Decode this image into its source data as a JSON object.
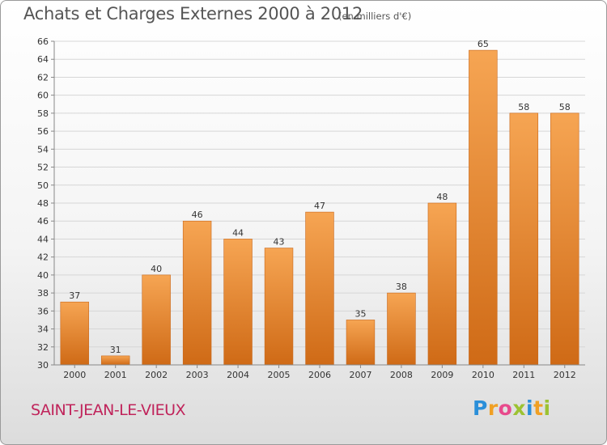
{
  "header": {
    "title": "Achats et Charges Externes 2000 à 2012",
    "subtitle": "(en milliers d'€)"
  },
  "footer": {
    "commune": "SAINT-JEAN-LE-VIEUX",
    "brand_letters": [
      {
        "ch": "P",
        "color": "#2b8fd9"
      },
      {
        "ch": "r",
        "color": "#f0a024"
      },
      {
        "ch": "o",
        "color": "#e84a8c"
      },
      {
        "ch": "x",
        "color": "#9cc232"
      },
      {
        "ch": "i",
        "color": "#2b8fd9"
      },
      {
        "ch": "t",
        "color": "#f0a024"
      },
      {
        "ch": "i",
        "color": "#9cc232"
      }
    ]
  },
  "colors": {
    "bar_light": "#f6a553",
    "bar_dark": "#cf6a16",
    "bar_edge": "#c8671a",
    "grid": "#d6d6d6",
    "axis": "#888888",
    "text": "#333333"
  },
  "chart_data": {
    "type": "bar",
    "title": "Achats et Charges Externes 2000 à 2012",
    "subtitle": "(en milliers d'€)",
    "categories": [
      "2000",
      "2001",
      "2002",
      "2003",
      "2004",
      "2005",
      "2006",
      "2007",
      "2008",
      "2009",
      "2010",
      "2011",
      "2012"
    ],
    "values": [
      37,
      31,
      40,
      46,
      44,
      43,
      47,
      35,
      38,
      48,
      65,
      58,
      58
    ],
    "ylim": [
      30,
      66
    ],
    "yticks": [
      30,
      32,
      34,
      36,
      38,
      40,
      42,
      44,
      46,
      48,
      50,
      52,
      54,
      56,
      58,
      60,
      62,
      64,
      66
    ],
    "grid": true,
    "data_labels": true,
    "xlabel": "",
    "ylabel": ""
  }
}
